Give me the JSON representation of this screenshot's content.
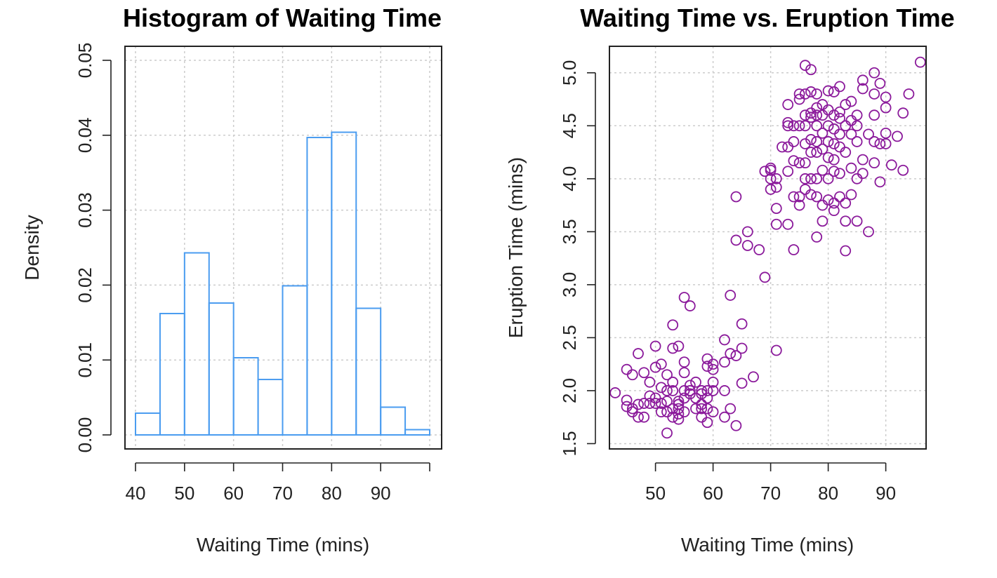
{
  "chart_data": [
    {
      "type": "bar",
      "title": "Histogram of Waiting Time",
      "xlabel": "Waiting Time (mins)",
      "ylabel": "Density",
      "bar_color": "#4a9cf0",
      "bins": [
        {
          "from": 40,
          "to": 45,
          "density": 0.0029
        },
        {
          "from": 45,
          "to": 50,
          "density": 0.0162
        },
        {
          "from": 50,
          "to": 55,
          "density": 0.0243
        },
        {
          "from": 55,
          "to": 60,
          "density": 0.0176
        },
        {
          "from": 60,
          "to": 65,
          "density": 0.0103
        },
        {
          "from": 65,
          "to": 70,
          "density": 0.0074
        },
        {
          "from": 70,
          "to": 75,
          "density": 0.0199
        },
        {
          "from": 75,
          "to": 80,
          "density": 0.0397
        },
        {
          "from": 80,
          "to": 85,
          "density": 0.0404
        },
        {
          "from": 85,
          "to": 90,
          "density": 0.0169
        },
        {
          "from": 90,
          "to": 95,
          "density": 0.0037
        },
        {
          "from": 95,
          "to": 100,
          "density": 0.0007
        }
      ],
      "xticks": [
        40,
        50,
        60,
        70,
        80,
        90
      ],
      "xtick_labels": [
        "40",
        "50",
        "60",
        "70",
        "80",
        "90"
      ],
      "xgrid": [
        40,
        50,
        60,
        70,
        80,
        90,
        100
      ],
      "yticks": [
        0,
        0.01,
        0.02,
        0.03,
        0.04,
        0.05
      ],
      "ytick_labels": [
        "0.00",
        "0.01",
        "0.02",
        "0.03",
        "0.04",
        "0.05"
      ],
      "xlim": [
        40,
        100
      ],
      "ylim": [
        0,
        0.05
      ],
      "grid": true
    },
    {
      "type": "scatter",
      "title": "Waiting Time vs. Eruption Time",
      "xlabel": "Waiting Time (mins)",
      "ylabel": "Eruption Time (mins)",
      "point_color": "#8b1a9b",
      "marker": "open-circle",
      "xticks": [
        50,
        60,
        70,
        80,
        90
      ],
      "xtick_labels": [
        "50",
        "60",
        "70",
        "80",
        "90"
      ],
      "yticks": [
        1.5,
        2.0,
        2.5,
        3.0,
        3.5,
        4.0,
        4.5,
        5.0
      ],
      "ytick_labels": [
        "1.5",
        "2.0",
        "2.5",
        "3.0",
        "3.5",
        "4.0",
        "4.5",
        "5.0"
      ],
      "xlim": [
        42,
        97
      ],
      "ylim": [
        1.45,
        5.25
      ],
      "grid": true,
      "points": [
        [
          43,
          1.98
        ],
        [
          45,
          1.85
        ],
        [
          45,
          1.91
        ],
        [
          45,
          2.2
        ],
        [
          46,
          1.8
        ],
        [
          46,
          1.83
        ],
        [
          46,
          2.15
        ],
        [
          47,
          1.75
        ],
        [
          47,
          1.87
        ],
        [
          47,
          2.35
        ],
        [
          48,
          1.75
        ],
        [
          48,
          1.88
        ],
        [
          48,
          2.17
        ],
        [
          49,
          1.88
        ],
        [
          49,
          1.95
        ],
        [
          49,
          2.08
        ],
        [
          50,
          1.88
        ],
        [
          50,
          1.93
        ],
        [
          50,
          2.22
        ],
        [
          50,
          2.42
        ],
        [
          51,
          1.8
        ],
        [
          51,
          1.88
        ],
        [
          51,
          2.03
        ],
        [
          51,
          2.25
        ],
        [
          52,
          1.6
        ],
        [
          52,
          1.8
        ],
        [
          52,
          1.9
        ],
        [
          52,
          2.0
        ],
        [
          52,
          2.15
        ],
        [
          53,
          1.75
        ],
        [
          53,
          1.83
        ],
        [
          53,
          2.0
        ],
        [
          53,
          2.08
        ],
        [
          53,
          2.4
        ],
        [
          53,
          2.62
        ],
        [
          54,
          1.73
        ],
        [
          54,
          1.78
        ],
        [
          54,
          1.83
        ],
        [
          54,
          1.87
        ],
        [
          54,
          1.9
        ],
        [
          54,
          2.42
        ],
        [
          55,
          1.8
        ],
        [
          55,
          1.93
        ],
        [
          55,
          2.0
        ],
        [
          55,
          2.17
        ],
        [
          55,
          2.27
        ],
        [
          55,
          2.88
        ],
        [
          56,
          1.97
        ],
        [
          56,
          2.0
        ],
        [
          56,
          2.05
        ],
        [
          56,
          2.8
        ],
        [
          57,
          1.83
        ],
        [
          57,
          1.93
        ],
        [
          57,
          2.08
        ],
        [
          58,
          1.75
        ],
        [
          58,
          1.83
        ],
        [
          58,
          1.87
        ],
        [
          58,
          1.97
        ],
        [
          58,
          2.0
        ],
        [
          59,
          1.7
        ],
        [
          59,
          1.83
        ],
        [
          59,
          1.93
        ],
        [
          59,
          2.0
        ],
        [
          59,
          2.23
        ],
        [
          59,
          2.3
        ],
        [
          60,
          1.8
        ],
        [
          60,
          2.0
        ],
        [
          60,
          2.08
        ],
        [
          60,
          2.2
        ],
        [
          60,
          2.25
        ],
        [
          62,
          1.75
        ],
        [
          62,
          2.0
        ],
        [
          62,
          2.27
        ],
        [
          62,
          2.48
        ],
        [
          63,
          1.83
        ],
        [
          63,
          2.35
        ],
        [
          63,
          2.9
        ],
        [
          64,
          1.67
        ],
        [
          64,
          2.33
        ],
        [
          64,
          3.42
        ],
        [
          64,
          3.83
        ],
        [
          65,
          2.07
        ],
        [
          65,
          2.4
        ],
        [
          65,
          2.63
        ],
        [
          66,
          3.37
        ],
        [
          66,
          3.5
        ],
        [
          67,
          2.13
        ],
        [
          68,
          3.33
        ],
        [
          69,
          3.07
        ],
        [
          69,
          4.07
        ],
        [
          70,
          3.9
        ],
        [
          70,
          4.0
        ],
        [
          70,
          4.08
        ],
        [
          70,
          4.1
        ],
        [
          71,
          2.38
        ],
        [
          71,
          3.57
        ],
        [
          71,
          3.72
        ],
        [
          71,
          3.92
        ],
        [
          71,
          4.0
        ],
        [
          72,
          4.3
        ],
        [
          73,
          3.57
        ],
        [
          73,
          4.07
        ],
        [
          73,
          4.3
        ],
        [
          73,
          4.5
        ],
        [
          73,
          4.53
        ],
        [
          73,
          4.7
        ],
        [
          74,
          3.33
        ],
        [
          74,
          3.83
        ],
        [
          74,
          4.17
        ],
        [
          74,
          4.35
        ],
        [
          74,
          4.5
        ],
        [
          75,
          3.75
        ],
        [
          75,
          3.83
        ],
        [
          75,
          4.15
        ],
        [
          75,
          4.5
        ],
        [
          75,
          4.75
        ],
        [
          75,
          4.8
        ],
        [
          76,
          3.9
        ],
        [
          76,
          4.0
        ],
        [
          76,
          4.15
        ],
        [
          76,
          4.33
        ],
        [
          76,
          4.5
        ],
        [
          76,
          4.6
        ],
        [
          76,
          4.8
        ],
        [
          76,
          5.07
        ],
        [
          77,
          3.85
        ],
        [
          77,
          4.0
        ],
        [
          77,
          4.25
        ],
        [
          77,
          4.37
        ],
        [
          77,
          4.58
        ],
        [
          77,
          4.62
        ],
        [
          77,
          4.82
        ],
        [
          77,
          5.03
        ],
        [
          78,
          3.45
        ],
        [
          78,
          3.83
        ],
        [
          78,
          4.0
        ],
        [
          78,
          4.25
        ],
        [
          78,
          4.35
        ],
        [
          78,
          4.5
        ],
        [
          78,
          4.6
        ],
        [
          78,
          4.67
        ],
        [
          78,
          4.8
        ],
        [
          79,
          3.6
        ],
        [
          79,
          3.75
        ],
        [
          79,
          4.08
        ],
        [
          79,
          4.28
        ],
        [
          79,
          4.43
        ],
        [
          79,
          4.6
        ],
        [
          79,
          4.7
        ],
        [
          80,
          3.8
        ],
        [
          80,
          4.0
        ],
        [
          80,
          4.2
        ],
        [
          80,
          4.35
        ],
        [
          80,
          4.5
        ],
        [
          80,
          4.65
        ],
        [
          80,
          4.83
        ],
        [
          81,
          3.7
        ],
        [
          81,
          3.77
        ],
        [
          81,
          4.07
        ],
        [
          81,
          4.18
        ],
        [
          81,
          4.33
        ],
        [
          81,
          4.47
        ],
        [
          81,
          4.6
        ],
        [
          81,
          4.82
        ],
        [
          82,
          3.83
        ],
        [
          82,
          4.05
        ],
        [
          82,
          4.3
        ],
        [
          82,
          4.42
        ],
        [
          82,
          4.57
        ],
        [
          82,
          4.63
        ],
        [
          82,
          4.87
        ],
        [
          83,
          3.32
        ],
        [
          83,
          3.6
        ],
        [
          83,
          3.77
        ],
        [
          83,
          4.25
        ],
        [
          83,
          4.5
        ],
        [
          83,
          4.7
        ],
        [
          84,
          3.85
        ],
        [
          84,
          4.1
        ],
        [
          84,
          4.42
        ],
        [
          84,
          4.55
        ],
        [
          84,
          4.73
        ],
        [
          85,
          3.6
        ],
        [
          85,
          4.0
        ],
        [
          85,
          4.35
        ],
        [
          85,
          4.5
        ],
        [
          85,
          4.6
        ],
        [
          86,
          4.05
        ],
        [
          86,
          4.18
        ],
        [
          86,
          4.85
        ],
        [
          86,
          4.93
        ],
        [
          87,
          3.5
        ],
        [
          87,
          4.42
        ],
        [
          88,
          4.15
        ],
        [
          88,
          4.35
        ],
        [
          88,
          4.6
        ],
        [
          88,
          4.8
        ],
        [
          88,
          5.0
        ],
        [
          89,
          3.97
        ],
        [
          89,
          4.33
        ],
        [
          89,
          4.9
        ],
        [
          90,
          4.33
        ],
        [
          90,
          4.43
        ],
        [
          90,
          4.67
        ],
        [
          90,
          4.77
        ],
        [
          91,
          4.13
        ],
        [
          92,
          4.4
        ],
        [
          93,
          4.08
        ],
        [
          93,
          4.62
        ],
        [
          94,
          4.8
        ],
        [
          96,
          5.1
        ]
      ]
    }
  ]
}
